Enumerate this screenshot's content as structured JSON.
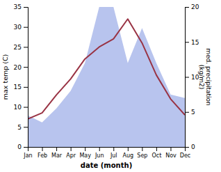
{
  "chart_data": {
    "type": "line",
    "xlabel": "date (month)",
    "ylabel": "max temp (C)",
    "y2label": "med. precipitation\n(kg/m2)",
    "categories": [
      "Jan",
      "Feb",
      "Mar",
      "Apr",
      "May",
      "Jun",
      "Jul",
      "Aug",
      "Sep",
      "Oct",
      "Nov",
      "Dec"
    ],
    "series": [
      {
        "type": "area",
        "axis": "y2",
        "color": "#b8c4ee",
        "values": [
          4.5,
          3.5,
          5.5,
          8,
          12,
          20,
          20,
          12,
          17,
          12,
          7.5,
          7
        ]
      },
      {
        "type": "line",
        "color": "#993344",
        "values": [
          7,
          8.5,
          13,
          17,
          22,
          25,
          27,
          32,
          26,
          18,
          12,
          8
        ]
      }
    ],
    "ylim": [
      0,
      35
    ],
    "yticks": [
      0,
      5,
      10,
      15,
      20,
      25,
      30,
      35
    ],
    "y2lim": [
      0,
      20
    ],
    "y2ticks": [
      0,
      5,
      10,
      15,
      20
    ],
    "grid": false
  }
}
